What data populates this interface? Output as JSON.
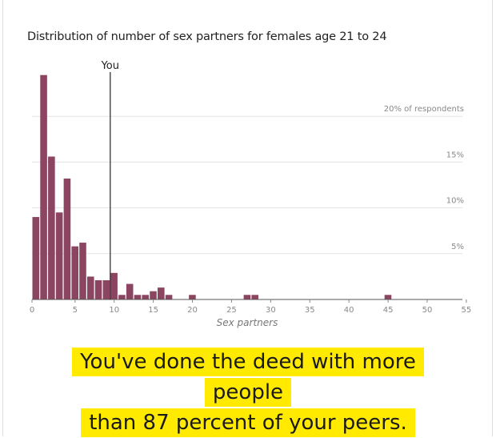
{
  "chart_data": {
    "type": "bar",
    "title": "Distribution of number of sex partners for females age 21 to 24",
    "xlabel": "Sex partners",
    "ylabel": "",
    "xlim": [
      0,
      55
    ],
    "ylim": [
      0,
      25
    ],
    "x_ticks": [
      "0",
      "5",
      "10",
      "15",
      "20",
      "25",
      "30",
      "35",
      "40",
      "45",
      "50",
      "55"
    ],
    "y_gridlines": [
      {
        "value": 20,
        "label": "20% of respondents"
      },
      {
        "value": 15,
        "label": "15%"
      },
      {
        "value": 10,
        "label": "10%"
      },
      {
        "value": 5,
        "label": "5%"
      }
    ],
    "bars": [
      {
        "x": 0,
        "value": 9.0
      },
      {
        "x": 1,
        "value": 24.5
      },
      {
        "x": 2,
        "value": 15.6
      },
      {
        "x": 3,
        "value": 9.5
      },
      {
        "x": 4,
        "value": 13.2
      },
      {
        "x": 5,
        "value": 5.8
      },
      {
        "x": 6,
        "value": 6.2
      },
      {
        "x": 7,
        "value": 2.5
      },
      {
        "x": 8,
        "value": 2.1
      },
      {
        "x": 9,
        "value": 2.1
      },
      {
        "x": 10,
        "value": 2.9
      },
      {
        "x": 11,
        "value": 0.5
      },
      {
        "x": 12,
        "value": 1.7
      },
      {
        "x": 13,
        "value": 0.5
      },
      {
        "x": 14,
        "value": 0.5
      },
      {
        "x": 15,
        "value": 0.9
      },
      {
        "x": 16,
        "value": 1.3
      },
      {
        "x": 17,
        "value": 0.5
      },
      {
        "x": 20,
        "value": 0.5
      },
      {
        "x": 27,
        "value": 0.5
      },
      {
        "x": 28,
        "value": 0.5
      },
      {
        "x": 45,
        "value": 0.5
      }
    ],
    "marker": {
      "x": 9,
      "label": "You"
    },
    "bar_color": "#8b4560",
    "grid": true
  },
  "callout": {
    "line1": "You've done the deed with more people",
    "line2": "than 87 percent of your peers.",
    "highlight_color": "#ffea00"
  }
}
